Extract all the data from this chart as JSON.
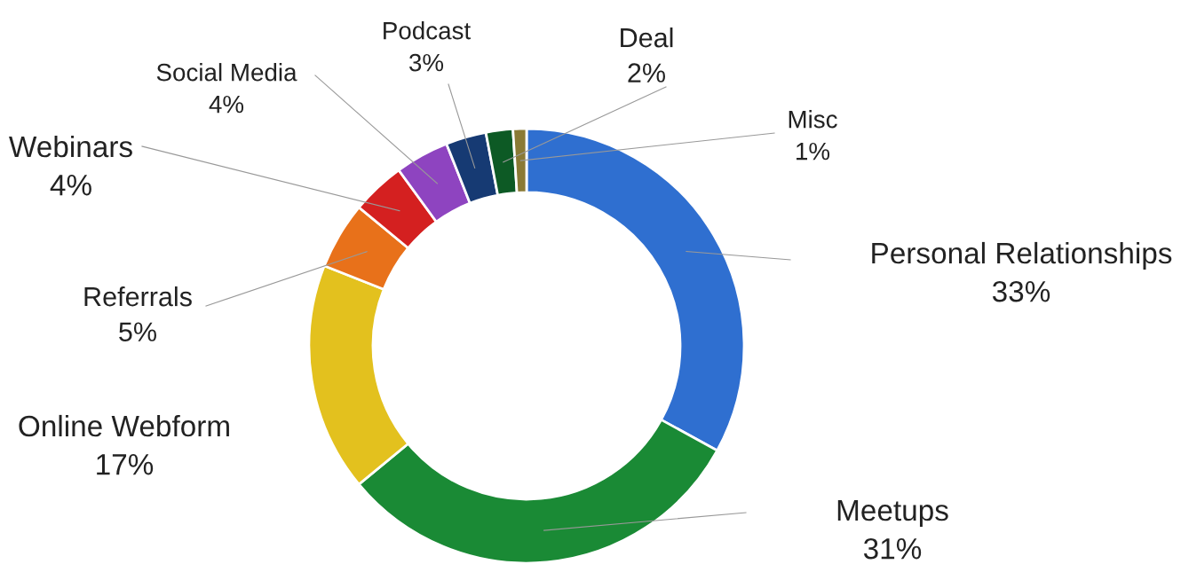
{
  "chart_data": {
    "type": "donut",
    "categories": [
      "Personal Relationships",
      "Meetups",
      "Online Webform",
      "Referrals",
      "Webinars",
      "Social Media",
      "Podcast",
      "Deal",
      "Misc"
    ],
    "values": [
      33,
      31,
      17,
      5,
      4,
      4,
      3,
      2,
      1
    ],
    "value_labels": [
      "33%",
      "31%",
      "17%",
      "5%",
      "4%",
      "4%",
      "3%",
      "2%",
      "1%"
    ],
    "colors": [
      "#2f6fd0",
      "#1a8a35",
      "#e3c11e",
      "#e8711a",
      "#d42020",
      "#8e44c0",
      "#163a73",
      "#0d5a25",
      "#8a7a35"
    ],
    "legend": false
  }
}
